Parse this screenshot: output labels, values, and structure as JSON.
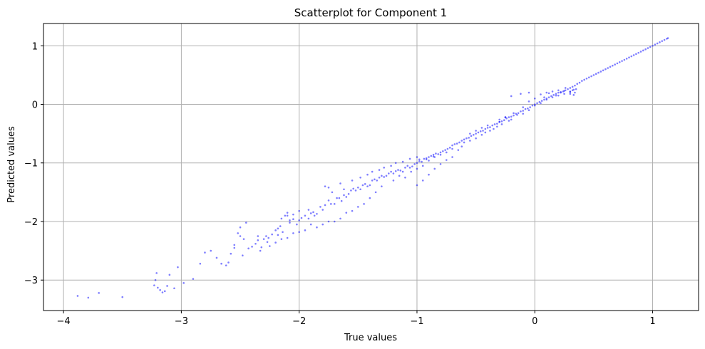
{
  "chart_data": {
    "type": "scatter",
    "title": "Scatterplot for Component 1",
    "xlabel": "True values",
    "ylabel": "Predicted values",
    "xlim": [
      -4.17,
      1.39
    ],
    "ylim": [
      -3.52,
      1.38
    ],
    "x_ticks": [
      -4,
      -3,
      -2,
      -1,
      0,
      1
    ],
    "y_ticks": [
      -3,
      -2,
      -1,
      0,
      1
    ],
    "x_tick_labels": [
      "−4",
      "−3",
      "−2",
      "−1",
      "0",
      "1"
    ],
    "y_tick_labels": [
      "−3",
      "−2",
      "−1",
      "0",
      "1"
    ],
    "grid": true,
    "marker_color": "#0000ff",
    "marker_alpha": 0.5,
    "points": [
      [
        -3.88,
        -3.27
      ],
      [
        -3.79,
        -3.3
      ],
      [
        -3.7,
        -3.22
      ],
      [
        -3.5,
        -3.29
      ],
      [
        -3.23,
        -3.09
      ],
      [
        -3.22,
        -3.0
      ],
      [
        -3.21,
        -2.88
      ],
      [
        -3.2,
        -3.13
      ],
      [
        -3.18,
        -3.17
      ],
      [
        -3.16,
        -3.21
      ],
      [
        -3.14,
        -3.19
      ],
      [
        -3.12,
        -3.1
      ],
      [
        -3.1,
        -2.91
      ],
      [
        -3.06,
        -3.14
      ],
      [
        -3.03,
        -2.78
      ],
      [
        -2.98,
        -3.05
      ],
      [
        -2.9,
        -2.98
      ],
      [
        -2.84,
        -2.72
      ],
      [
        -2.8,
        -2.53
      ],
      [
        -2.75,
        -2.5
      ],
      [
        -2.7,
        -2.62
      ],
      [
        -2.66,
        -2.72
      ],
      [
        -2.62,
        -2.75
      ],
      [
        -2.6,
        -2.7
      ],
      [
        -2.58,
        -2.55
      ],
      [
        -2.55,
        -2.4
      ],
      [
        -2.52,
        -2.2
      ],
      [
        -2.5,
        -2.1
      ],
      [
        -2.47,
        -2.3
      ],
      [
        -2.45,
        -2.02
      ],
      [
        -2.43,
        -2.46
      ],
      [
        -2.4,
        -2.43
      ],
      [
        -2.37,
        -2.38
      ],
      [
        -2.35,
        -2.32
      ],
      [
        -2.33,
        -2.5
      ],
      [
        -2.32,
        -2.44
      ],
      [
        -2.3,
        -2.3
      ],
      [
        -2.28,
        -2.25
      ],
      [
        -2.26,
        -2.28
      ],
      [
        -2.23,
        -2.22
      ],
      [
        -2.2,
        -2.15
      ],
      [
        -2.18,
        -2.23
      ],
      [
        -2.16,
        -2.08
      ],
      [
        -2.14,
        -2.18
      ],
      [
        -2.12,
        -1.9
      ],
      [
        -2.1,
        -1.85
      ],
      [
        -2.08,
        -2.02
      ],
      [
        -2.05,
        -1.96
      ],
      [
        -2.02,
        -2.05
      ],
      [
        -2.0,
        -1.98
      ],
      [
        -1.98,
        -1.94
      ],
      [
        -1.95,
        -1.9
      ],
      [
        -1.92,
        -1.95
      ],
      [
        -1.9,
        -1.86
      ],
      [
        -1.87,
        -1.9
      ],
      [
        -1.85,
        -1.87
      ],
      [
        -1.82,
        -1.75
      ],
      [
        -1.8,
        -1.8
      ],
      [
        -1.78,
        -1.72
      ],
      [
        -1.75,
        -1.64
      ],
      [
        -1.73,
        -1.7
      ],
      [
        -1.7,
        -1.7
      ],
      [
        -1.68,
        -1.6
      ],
      [
        -1.66,
        -1.6
      ],
      [
        -1.64,
        -1.65
      ],
      [
        -1.62,
        -1.55
      ],
      [
        -1.6,
        -1.58
      ],
      [
        -1.58,
        -1.53
      ],
      [
        -1.56,
        -1.47
      ],
      [
        -1.54,
        -1.44
      ],
      [
        -1.52,
        -1.47
      ],
      [
        -1.5,
        -1.42
      ],
      [
        -1.48,
        -1.45
      ],
      [
        -1.46,
        -1.38
      ],
      [
        -1.44,
        -1.36
      ],
      [
        -1.42,
        -1.4
      ],
      [
        -1.4,
        -1.38
      ],
      [
        -1.38,
        -1.3
      ],
      [
        -1.36,
        -1.28
      ],
      [
        -1.34,
        -1.3
      ],
      [
        -1.32,
        -1.25
      ],
      [
        -1.3,
        -1.22
      ],
      [
        -1.28,
        -1.24
      ],
      [
        -1.26,
        -1.22
      ],
      [
        -1.24,
        -1.18
      ],
      [
        -1.22,
        -1.15
      ],
      [
        -1.2,
        -1.18
      ],
      [
        -1.18,
        -1.14
      ],
      [
        -1.16,
        -1.12
      ],
      [
        -1.14,
        -1.13
      ],
      [
        -1.12,
        -1.15
      ],
      [
        -1.1,
        -1.08
      ],
      [
        -1.08,
        -1.05
      ],
      [
        -1.06,
        -1.08
      ],
      [
        -1.04,
        -1.06
      ],
      [
        -1.02,
        -1.02
      ],
      [
        -1.0,
        -1.0
      ],
      [
        -0.98,
        -0.97
      ],
      [
        -0.96,
        -0.98
      ],
      [
        -0.94,
        -0.93
      ],
      [
        -0.92,
        -0.94
      ],
      [
        -0.9,
        -0.9
      ],
      [
        -0.88,
        -0.88
      ],
      [
        -0.86,
        -0.89
      ],
      [
        -0.84,
        -0.84
      ],
      [
        -0.82,
        -0.85
      ],
      [
        -0.8,
        -0.82
      ],
      [
        -0.78,
        -0.8
      ],
      [
        -0.76,
        -0.78
      ],
      [
        -0.74,
        -0.76
      ],
      [
        -0.72,
        -0.74
      ],
      [
        -0.7,
        -0.7
      ],
      [
        -0.68,
        -0.68
      ],
      [
        -0.66,
        -0.67
      ],
      [
        -0.64,
        -0.65
      ],
      [
        -0.62,
        -0.62
      ],
      [
        -0.6,
        -0.6
      ],
      [
        -0.58,
        -0.58
      ],
      [
        -0.56,
        -0.57
      ],
      [
        -0.54,
        -0.54
      ],
      [
        -0.52,
        -0.52
      ],
      [
        -0.5,
        -0.5
      ],
      [
        -0.48,
        -0.48
      ],
      [
        -0.46,
        -0.46
      ],
      [
        -0.44,
        -0.45
      ],
      [
        -0.42,
        -0.42
      ],
      [
        -0.4,
        -0.4
      ],
      [
        -0.38,
        -0.39
      ],
      [
        -0.36,
        -0.36
      ],
      [
        -0.34,
        -0.34
      ],
      [
        -0.32,
        -0.33
      ],
      [
        -0.3,
        -0.3
      ],
      [
        -0.28,
        -0.29
      ],
      [
        -0.26,
        -0.27
      ],
      [
        -0.24,
        -0.24
      ],
      [
        -0.22,
        -0.22
      ],
      [
        -0.2,
        -0.21
      ],
      [
        -0.18,
        -0.19
      ],
      [
        -0.16,
        -0.16
      ],
      [
        -0.14,
        -0.15
      ],
      [
        -0.12,
        -0.12
      ],
      [
        -0.1,
        -0.11
      ],
      [
        -0.08,
        -0.08
      ],
      [
        -0.06,
        -0.07
      ],
      [
        -0.04,
        -0.05
      ],
      [
        -0.02,
        -0.02
      ],
      [
        0.0,
        0.0
      ],
      [
        0.02,
        0.02
      ],
      [
        0.04,
        0.04
      ],
      [
        0.06,
        0.06
      ],
      [
        0.08,
        0.08
      ],
      [
        0.1,
        0.1
      ],
      [
        0.12,
        0.12
      ],
      [
        0.14,
        0.14
      ],
      [
        0.16,
        0.16
      ],
      [
        0.18,
        0.18
      ],
      [
        0.2,
        0.2
      ],
      [
        0.22,
        0.21
      ],
      [
        0.24,
        0.22
      ],
      [
        0.26,
        0.24
      ],
      [
        0.28,
        0.26
      ],
      [
        0.3,
        0.28
      ],
      [
        0.32,
        0.3
      ],
      [
        0.34,
        0.32
      ],
      [
        0.36,
        0.35
      ],
      [
        0.38,
        0.37
      ],
      [
        0.4,
        0.4
      ],
      [
        0.42,
        0.42
      ],
      [
        0.44,
        0.44
      ],
      [
        0.46,
        0.46
      ],
      [
        0.48,
        0.48
      ],
      [
        0.5,
        0.5
      ],
      [
        0.52,
        0.52
      ],
      [
        0.54,
        0.54
      ],
      [
        0.56,
        0.56
      ],
      [
        0.58,
        0.58
      ],
      [
        0.6,
        0.6
      ],
      [
        0.62,
        0.62
      ],
      [
        0.64,
        0.64
      ],
      [
        0.66,
        0.66
      ],
      [
        0.68,
        0.68
      ],
      [
        0.7,
        0.7
      ],
      [
        0.72,
        0.72
      ],
      [
        0.74,
        0.74
      ],
      [
        0.76,
        0.76
      ],
      [
        0.78,
        0.78
      ],
      [
        0.8,
        0.8
      ],
      [
        0.82,
        0.82
      ],
      [
        0.84,
        0.84
      ],
      [
        0.86,
        0.86
      ],
      [
        0.88,
        0.88
      ],
      [
        0.9,
        0.9
      ],
      [
        0.92,
        0.92
      ],
      [
        0.94,
        0.94
      ],
      [
        0.96,
        0.96
      ],
      [
        0.98,
        0.98
      ],
      [
        1.0,
        1.0
      ],
      [
        1.02,
        1.02
      ],
      [
        1.04,
        1.04
      ],
      [
        1.06,
        1.06
      ],
      [
        1.08,
        1.08
      ],
      [
        1.1,
        1.1
      ],
      [
        1.12,
        1.12
      ],
      [
        1.13,
        1.13
      ],
      [
        -0.2,
        0.14
      ],
      [
        -0.12,
        0.18
      ],
      [
        -0.05,
        0.2
      ],
      [
        0.05,
        0.17
      ],
      [
        0.1,
        0.2
      ],
      [
        0.15,
        0.22
      ],
      [
        0.2,
        0.24
      ],
      [
        0.25,
        0.23
      ],
      [
        0.3,
        0.21
      ],
      [
        0.33,
        0.25
      ],
      [
        0.3,
        0.18
      ],
      [
        0.22,
        0.2
      ],
      [
        0.0,
        0.1
      ],
      [
        -0.05,
        0.05
      ],
      [
        0.08,
        0.12
      ],
      [
        0.18,
        0.15
      ],
      [
        0.26,
        0.28
      ],
      [
        0.12,
        0.19
      ],
      [
        -0.1,
        -0.05
      ],
      [
        -0.18,
        -0.15
      ],
      [
        -0.25,
        -0.22
      ],
      [
        -0.3,
        -0.3
      ],
      [
        -0.22,
        -0.28
      ],
      [
        -0.15,
        -0.18
      ],
      [
        -0.35,
        -0.42
      ],
      [
        -0.42,
        -0.48
      ],
      [
        -0.5,
        -0.58
      ],
      [
        -0.55,
        -0.62
      ],
      [
        -0.6,
        -0.65
      ],
      [
        -0.62,
        -0.72
      ],
      [
        -0.65,
        -0.78
      ],
      [
        -0.7,
        -0.76
      ],
      [
        -0.75,
        -0.82
      ],
      [
        -0.8,
        -0.86
      ],
      [
        -0.85,
        -0.9
      ],
      [
        -0.9,
        -0.96
      ],
      [
        -0.95,
        -1.05
      ],
      [
        -1.0,
        -1.1
      ],
      [
        -1.05,
        -1.15
      ],
      [
        -1.1,
        -1.25
      ],
      [
        -1.15,
        -1.22
      ],
      [
        -1.2,
        -1.3
      ],
      [
        -0.9,
        -1.2
      ],
      [
        -0.85,
        -1.1
      ],
      [
        -0.8,
        -1.02
      ],
      [
        -0.75,
        -0.95
      ],
      [
        -0.7,
        -0.9
      ],
      [
        -0.95,
        -1.3
      ],
      [
        -1.0,
        -1.38
      ],
      [
        -1.3,
        -1.4
      ],
      [
        -1.35,
        -1.5
      ],
      [
        -1.4,
        -1.6
      ],
      [
        -1.45,
        -1.7
      ],
      [
        -1.5,
        -1.75
      ],
      [
        -1.55,
        -1.82
      ],
      [
        -1.6,
        -1.85
      ],
      [
        -1.65,
        -1.95
      ],
      [
        -1.7,
        -2.0
      ],
      [
        -1.75,
        -2.0
      ],
      [
        -1.8,
        -2.05
      ],
      [
        -1.85,
        -2.1
      ],
      [
        -1.9,
        -2.05
      ],
      [
        -1.95,
        -2.15
      ],
      [
        -2.0,
        -2.18
      ],
      [
        -2.05,
        -2.2
      ],
      [
        -2.1,
        -2.28
      ],
      [
        -2.15,
        -2.3
      ],
      [
        -2.2,
        -2.36
      ],
      [
        -2.25,
        -2.42
      ],
      [
        -1.72,
        -1.5
      ],
      [
        -1.75,
        -1.42
      ],
      [
        -1.78,
        -1.4
      ],
      [
        -1.62,
        -1.45
      ],
      [
        -1.65,
        -1.35
      ],
      [
        -1.55,
        -1.3
      ],
      [
        -1.48,
        -1.25
      ],
      [
        -1.42,
        -1.2
      ],
      [
        -1.38,
        -1.15
      ],
      [
        -1.32,
        -1.12
      ],
      [
        -1.28,
        -1.08
      ],
      [
        -1.22,
        -1.05
      ],
      [
        -1.18,
        -1.0
      ],
      [
        -1.12,
        -0.98
      ],
      [
        -1.06,
        -0.93
      ],
      [
        -1.0,
        -0.9
      ],
      [
        -0.98,
        -0.94
      ],
      [
        -0.92,
        -0.92
      ],
      [
        -0.86,
        -0.86
      ],
      [
        -0.55,
        -0.5
      ],
      [
        -0.5,
        -0.45
      ],
      [
        -0.45,
        -0.4
      ],
      [
        -0.4,
        -0.36
      ],
      [
        -0.3,
        -0.26
      ],
      [
        -0.25,
        -0.22
      ],
      [
        -0.45,
        -0.52
      ],
      [
        -0.38,
        -0.45
      ],
      [
        -0.32,
        -0.38
      ],
      [
        -0.28,
        -0.34
      ],
      [
        -0.2,
        -0.26
      ],
      [
        -0.1,
        -0.16
      ],
      [
        -0.05,
        -0.1
      ],
      [
        0.0,
        -0.02
      ],
      [
        0.05,
        0.02
      ],
      [
        0.1,
        0.08
      ],
      [
        0.15,
        0.12
      ],
      [
        0.2,
        0.15
      ],
      [
        0.25,
        0.18
      ],
      [
        0.3,
        0.22
      ],
      [
        0.35,
        0.26
      ],
      [
        0.34,
        0.2
      ],
      [
        0.33,
        0.16
      ],
      [
        0.32,
        0.24
      ],
      [
        -2.0,
        -1.82
      ],
      [
        -2.05,
        -1.88
      ],
      [
        -2.1,
        -1.9
      ],
      [
        -2.15,
        -1.95
      ],
      [
        -2.5,
        -2.25
      ],
      [
        -2.55,
        -2.45
      ],
      [
        -2.48,
        -2.58
      ],
      [
        -2.35,
        -2.25
      ],
      [
        -2.27,
        -2.35
      ],
      [
        -2.18,
        -2.12
      ],
      [
        -2.08,
        -1.98
      ],
      [
        -1.92,
        -1.8
      ],
      [
        -1.88,
        -1.84
      ]
    ]
  }
}
